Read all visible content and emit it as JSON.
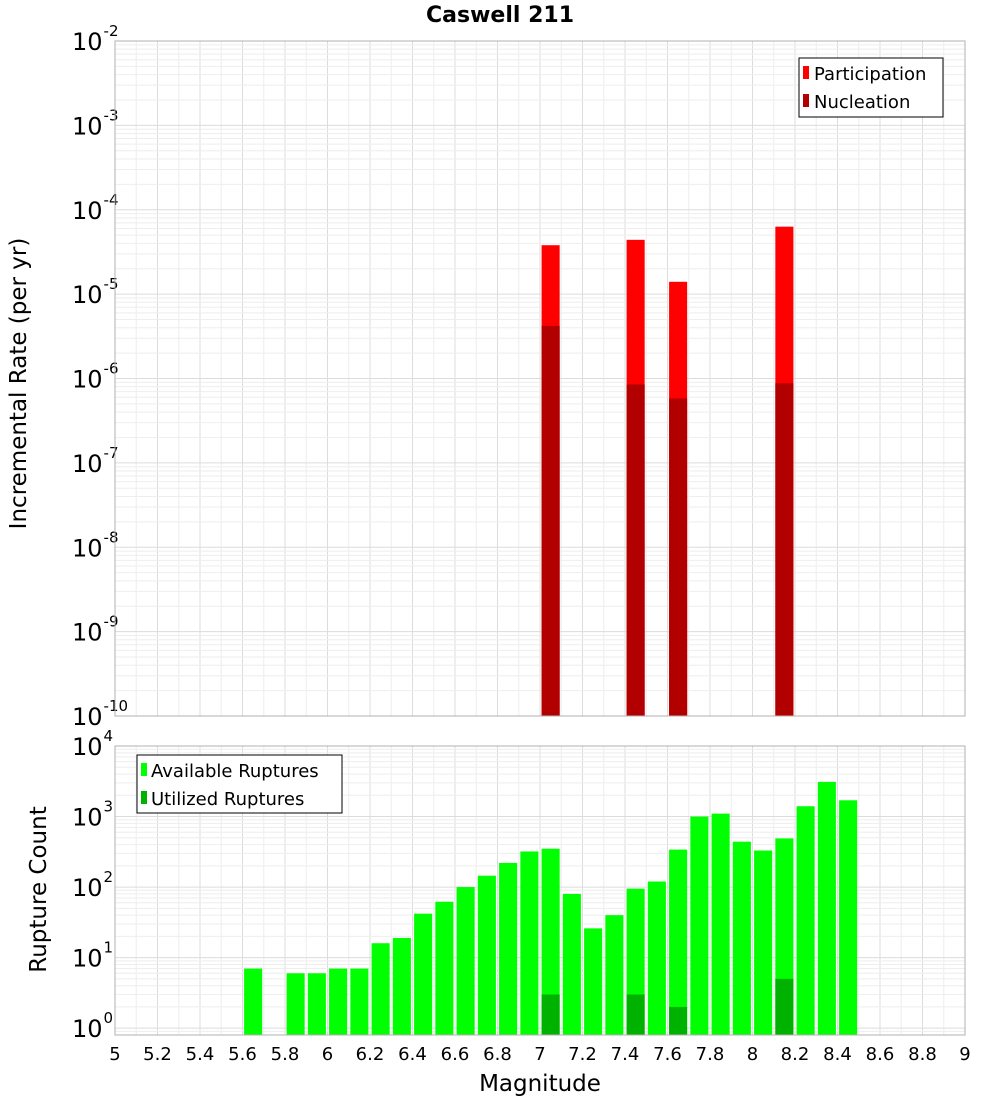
{
  "chart_data": [
    {
      "type": "bar",
      "title": "Caswell 211",
      "ylabel": "Incremental Rate (per yr)",
      "yscale": "log",
      "ylim": [
        1e-10,
        0.01
      ],
      "xlim": [
        5,
        9
      ],
      "grid": true,
      "legend_position": "top-right",
      "y_tick_exponents": [
        "-10",
        "-9",
        "-8",
        "-7",
        "-6",
        "-5",
        "-4",
        "-3",
        "-2"
      ],
      "series": [
        {
          "name": "Participation",
          "color": "#ff0000",
          "points": [
            {
              "x": 7.05,
              "y": 3.8e-05
            },
            {
              "x": 7.45,
              "y": 4.4e-05
            },
            {
              "x": 7.65,
              "y": 1.4e-05
            },
            {
              "x": 8.15,
              "y": 6.3e-05
            }
          ]
        },
        {
          "name": "Nucleation",
          "color": "#b20000",
          "points": [
            {
              "x": 7.05,
              "y": 4.2e-06
            },
            {
              "x": 7.45,
              "y": 8.5e-07
            },
            {
              "x": 7.65,
              "y": 5.8e-07
            },
            {
              "x": 8.15,
              "y": 8.8e-07
            }
          ]
        }
      ]
    },
    {
      "type": "bar",
      "ylabel": "Rupture Count",
      "xlabel": "Magnitude",
      "yscale": "log",
      "ylim": [
        0.8,
        10000
      ],
      "xlim": [
        5,
        9
      ],
      "grid": true,
      "legend_position": "top-left",
      "x_tick_labels": [
        "5",
        "5.2",
        "5.4",
        "5.6",
        "5.8",
        "6",
        "6.2",
        "6.4",
        "6.6",
        "6.8",
        "7",
        "7.2",
        "7.4",
        "7.6",
        "7.8",
        "8",
        "8.2",
        "8.4",
        "8.6",
        "8.8",
        "9"
      ],
      "y_tick_exponents": [
        "0",
        "1",
        "2",
        "3",
        "4"
      ],
      "series": [
        {
          "name": "Available Ruptures",
          "color": "#00ff00",
          "points": [
            {
              "x": 5.65,
              "y": 7
            },
            {
              "x": 5.85,
              "y": 6
            },
            {
              "x": 5.95,
              "y": 6
            },
            {
              "x": 6.05,
              "y": 7
            },
            {
              "x": 6.15,
              "y": 7
            },
            {
              "x": 6.25,
              "y": 16
            },
            {
              "x": 6.35,
              "y": 19
            },
            {
              "x": 6.45,
              "y": 42
            },
            {
              "x": 6.55,
              "y": 62
            },
            {
              "x": 6.65,
              "y": 100
            },
            {
              "x": 6.75,
              "y": 145
            },
            {
              "x": 6.85,
              "y": 220
            },
            {
              "x": 6.95,
              "y": 320
            },
            {
              "x": 7.05,
              "y": 350
            },
            {
              "x": 7.15,
              "y": 80
            },
            {
              "x": 7.25,
              "y": 26
            },
            {
              "x": 7.35,
              "y": 40
            },
            {
              "x": 7.45,
              "y": 95
            },
            {
              "x": 7.55,
              "y": 120
            },
            {
              "x": 7.65,
              "y": 340
            },
            {
              "x": 7.75,
              "y": 1000
            },
            {
              "x": 7.85,
              "y": 1100
            },
            {
              "x": 7.95,
              "y": 440
            },
            {
              "x": 8.05,
              "y": 330
            },
            {
              "x": 8.15,
              "y": 490
            },
            {
              "x": 8.25,
              "y": 1400
            },
            {
              "x": 8.35,
              "y": 3100
            },
            {
              "x": 8.45,
              "y": 1700
            }
          ]
        },
        {
          "name": "Utilized Ruptures",
          "color": "#00b200",
          "points": [
            {
              "x": 7.05,
              "y": 3
            },
            {
              "x": 7.45,
              "y": 3
            },
            {
              "x": 7.65,
              "y": 2
            },
            {
              "x": 8.15,
              "y": 5
            }
          ]
        }
      ]
    }
  ]
}
